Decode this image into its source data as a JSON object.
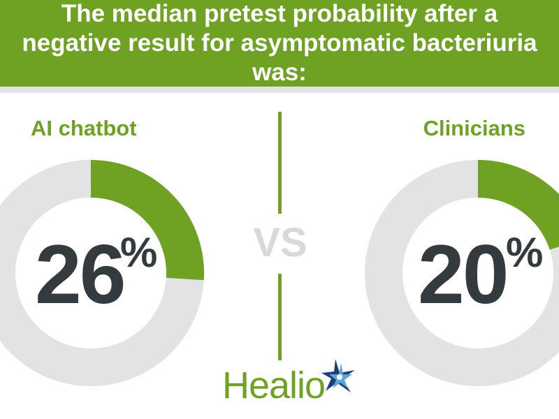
{
  "header": {
    "title": "The median pretest probability after a negative result for asymptomatic bacteriuria was:"
  },
  "comparison": {
    "left_label": "AI chatbot",
    "right_label": "Clinicians",
    "vs_text": "VS"
  },
  "chart_data": [
    {
      "type": "pie",
      "title": "AI chatbot",
      "value": 26,
      "value_display": "26",
      "unit": "%",
      "colors": {
        "filled": "#6fa122",
        "remainder": "#e3e3e3"
      }
    },
    {
      "type": "pie",
      "title": "Clinicians",
      "value": 20,
      "value_display": "20",
      "unit": "%",
      "colors": {
        "filled": "#6fa122",
        "remainder": "#e3e3e3"
      }
    }
  ],
  "logo": {
    "text": "Healio"
  }
}
